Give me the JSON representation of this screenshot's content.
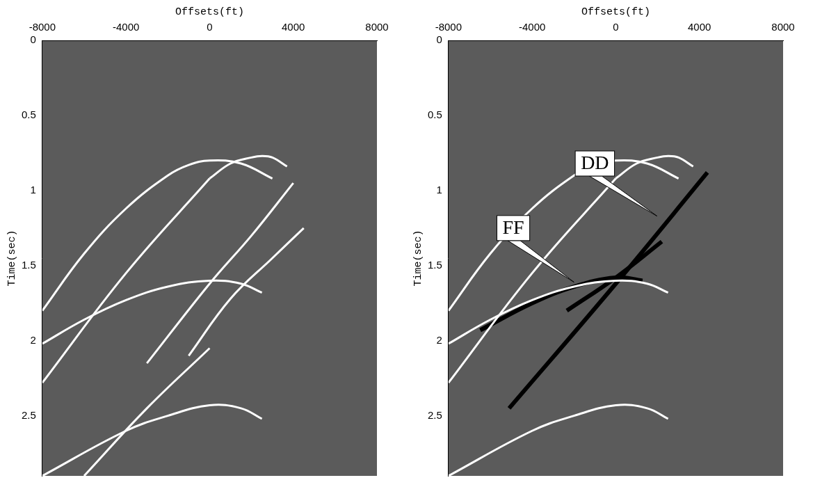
{
  "chart_data": [
    {
      "type": "line",
      "x_label": "Offsets(ft)",
      "y_label": "Time(sec)",
      "xlim": [
        -8000,
        8000
      ],
      "xticks": [
        -8000,
        -4000,
        0,
        4000,
        8000
      ],
      "ylim": [
        0,
        2.9
      ],
      "yticks": [
        0,
        0.5,
        1,
        1.5,
        2,
        2.5
      ],
      "grid": false,
      "series": [
        {
          "color": "#ffffff",
          "x": [
            -8000,
            -6000,
            -4000,
            -2000,
            -1000,
            0,
            1500,
            3000
          ],
          "values": [
            1.8,
            1.42,
            1.12,
            0.9,
            0.83,
            0.8,
            0.82,
            0.92
          ]
        },
        {
          "color": "#ffffff",
          "x": [
            0,
            1000,
            2000,
            2500,
            3000,
            3700
          ],
          "values": [
            0.92,
            0.82,
            0.78,
            0.77,
            0.78,
            0.84
          ]
        },
        {
          "color": "#ffffff",
          "x": [
            -8000,
            -4000,
            0
          ],
          "values": [
            2.28,
            1.55,
            0.92
          ]
        },
        {
          "color": "#ffffff",
          "x": [
            -8000,
            -6000,
            -4000,
            -2000,
            0,
            1500,
            2500
          ],
          "values": [
            2.02,
            1.86,
            1.73,
            1.64,
            1.6,
            1.62,
            1.68
          ]
        },
        {
          "color": "#ffffff",
          "x": [
            -3000,
            0,
            2000,
            4000
          ],
          "values": [
            2.15,
            1.62,
            1.3,
            0.95
          ]
        },
        {
          "color": "#ffffff",
          "x": [
            -1000,
            1000,
            3000,
            4500
          ],
          "values": [
            2.1,
            1.72,
            1.45,
            1.25
          ]
        },
        {
          "color": "#ffffff",
          "x": [
            -8000,
            -4000,
            -2000,
            0,
            1500,
            2500
          ],
          "values": [
            2.9,
            2.6,
            2.5,
            2.43,
            2.45,
            2.52
          ]
        },
        {
          "color": "#ffffff",
          "x": [
            -6000,
            -3000,
            0
          ],
          "values": [
            2.9,
            2.45,
            2.05
          ]
        }
      ]
    },
    {
      "type": "line",
      "x_label": "Offsets(ft)",
      "y_label": "Time(sec)",
      "xlim": [
        -8000,
        8000
      ],
      "xticks": [
        -8000,
        -4000,
        0,
        4000,
        8000
      ],
      "ylim": [
        0,
        2.9
      ],
      "yticks": [
        0,
        0.5,
        1,
        1.5,
        2,
        2.5
      ],
      "grid": false,
      "series": [
        {
          "color": "#ffffff",
          "x": [
            -8000,
            -6000,
            -4000,
            -2000,
            -1000,
            0,
            1500,
            3000
          ],
          "values": [
            1.8,
            1.42,
            1.12,
            0.9,
            0.83,
            0.8,
            0.82,
            0.92
          ]
        },
        {
          "color": "#ffffff",
          "x": [
            0,
            1000,
            2000,
            2500,
            3000,
            3700
          ],
          "values": [
            0.92,
            0.82,
            0.78,
            0.77,
            0.78,
            0.84
          ]
        },
        {
          "color": "#ffffff",
          "x": [
            -8000,
            -4000,
            0
          ],
          "values": [
            2.28,
            1.55,
            0.92
          ]
        },
        {
          "color": "#ffffff",
          "x": [
            -8000,
            -6000,
            -4000,
            -2000,
            0,
            1500,
            2500
          ],
          "values": [
            2.02,
            1.86,
            1.73,
            1.64,
            1.6,
            1.62,
            1.68
          ]
        },
        {
          "color": "#ffffff",
          "x": [
            -8000,
            -4000,
            -2000,
            0,
            1500,
            2500
          ],
          "values": [
            2.9,
            2.6,
            2.5,
            2.43,
            2.45,
            2.52
          ]
        },
        {
          "color": "#000000",
          "x": [
            -5100,
            0,
            4380
          ],
          "values": [
            2.45,
            1.62,
            0.88
          ]
        },
        {
          "color": "#000000",
          "x": [
            -2340,
            0,
            2200
          ],
          "values": [
            1.8,
            1.58,
            1.34
          ]
        },
        {
          "color": "#000000",
          "x": [
            -6480,
            -4000,
            -2000,
            0,
            1280
          ],
          "values": [
            1.93,
            1.75,
            1.64,
            1.58,
            1.6
          ]
        }
      ],
      "annotations": [
        {
          "text": "DD",
          "x": -1000,
          "y": 0.82,
          "target": [
            1970,
            1.17
          ]
        },
        {
          "text": "FF",
          "x": -4900,
          "y": 1.25,
          "target": [
            -2000,
            1.61
          ]
        }
      ]
    }
  ]
}
